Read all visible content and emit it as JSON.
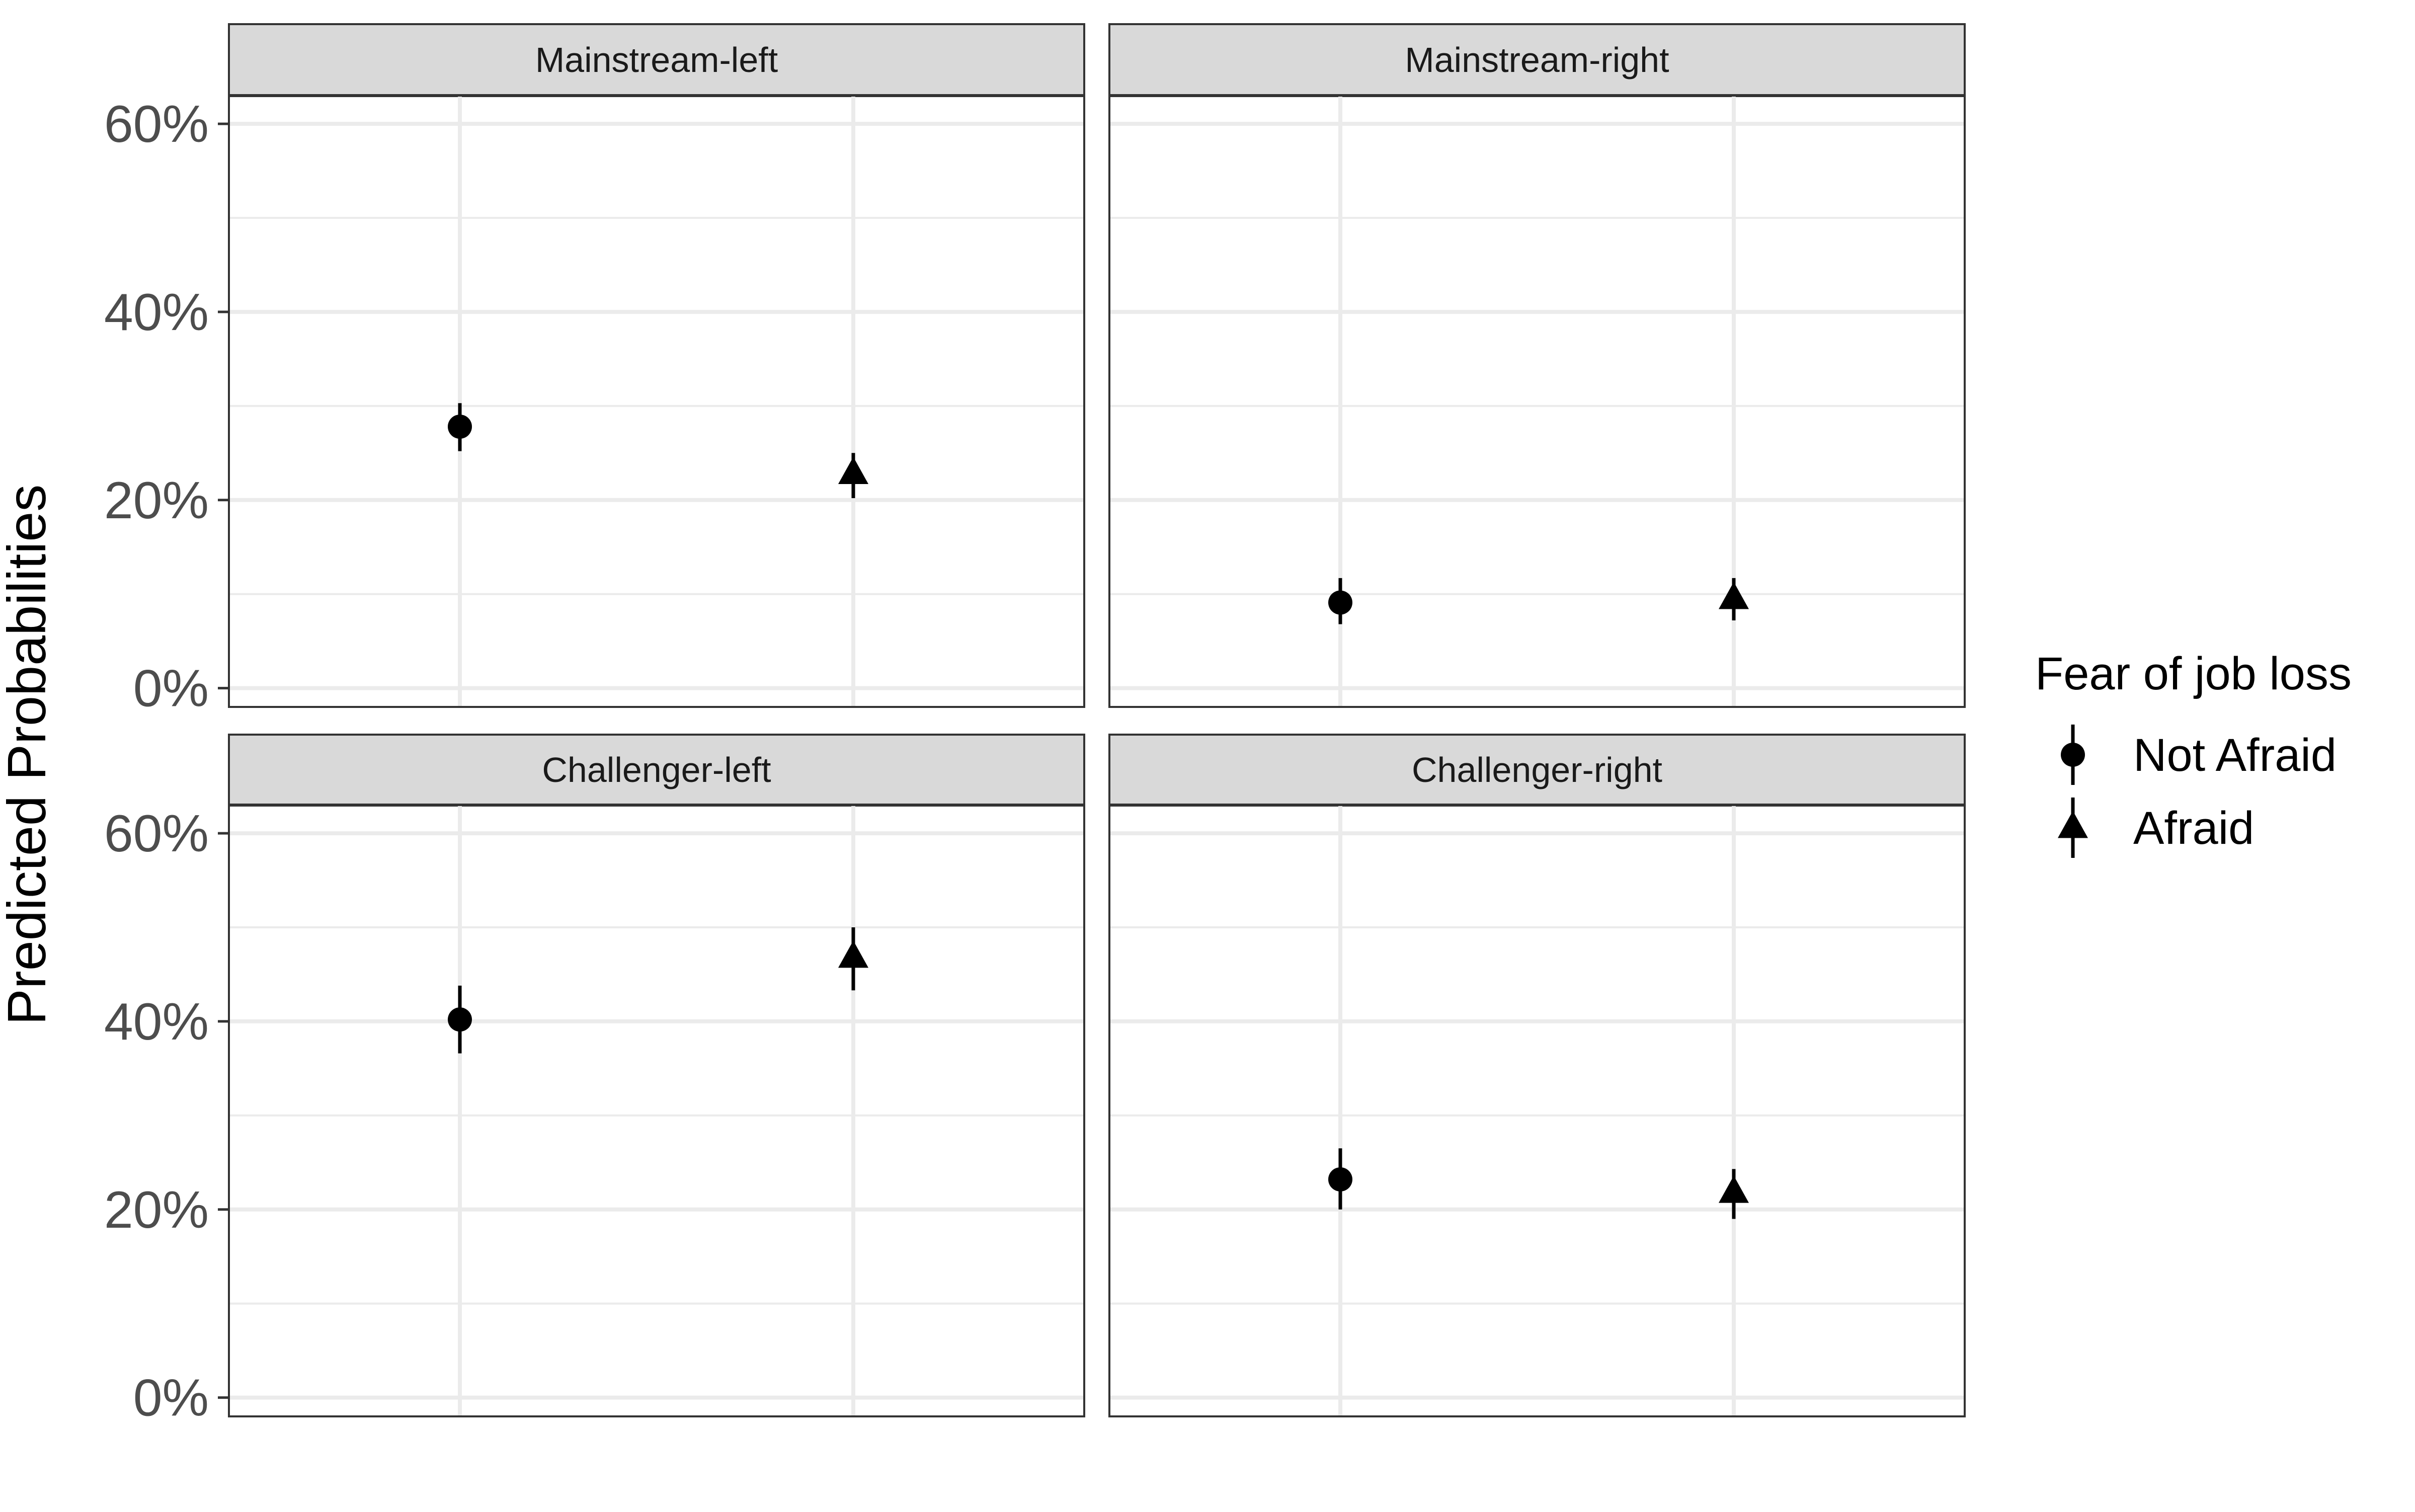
{
  "chart_data": {
    "type": "scatter",
    "ylabel": "Predicted  Probabilities",
    "xlabel": "",
    "ylim": [
      -0.02,
      0.63
    ],
    "y_ticks": [
      0,
      0.2,
      0.4,
      0.6
    ],
    "y_tick_labels": [
      "0%",
      "20%",
      "40%",
      "60%"
    ],
    "categories": [
      "Not Afraid",
      "Afraid"
    ],
    "grid": true,
    "legend": {
      "title": "Fear of job loss",
      "position": "right",
      "entries": [
        {
          "label": "Not Afraid",
          "shape": "circle"
        },
        {
          "label": "Afraid",
          "shape": "triangle"
        }
      ]
    },
    "panels": [
      {
        "title": "Mainstream-left",
        "points": [
          {
            "group": "Not Afraid",
            "y": 0.278,
            "lower": 0.252,
            "upper": 0.303
          },
          {
            "group": "Afraid",
            "y": 0.228,
            "lower": 0.202,
            "upper": 0.25
          }
        ]
      },
      {
        "title": "Mainstream-right",
        "points": [
          {
            "group": "Not Afraid",
            "y": 0.091,
            "lower": 0.068,
            "upper": 0.117
          },
          {
            "group": "Afraid",
            "y": 0.095,
            "lower": 0.072,
            "upper": 0.117
          }
        ]
      },
      {
        "title": "Challenger-left",
        "points": [
          {
            "group": "Not Afraid",
            "y": 0.402,
            "lower": 0.366,
            "upper": 0.438
          },
          {
            "group": "Afraid",
            "y": 0.468,
            "lower": 0.433,
            "upper": 0.5
          }
        ]
      },
      {
        "title": "Challenger-right",
        "points": [
          {
            "group": "Not Afraid",
            "y": 0.232,
            "lower": 0.2,
            "upper": 0.265
          },
          {
            "group": "Afraid",
            "y": 0.218,
            "lower": 0.19,
            "upper": 0.243
          }
        ]
      }
    ]
  }
}
